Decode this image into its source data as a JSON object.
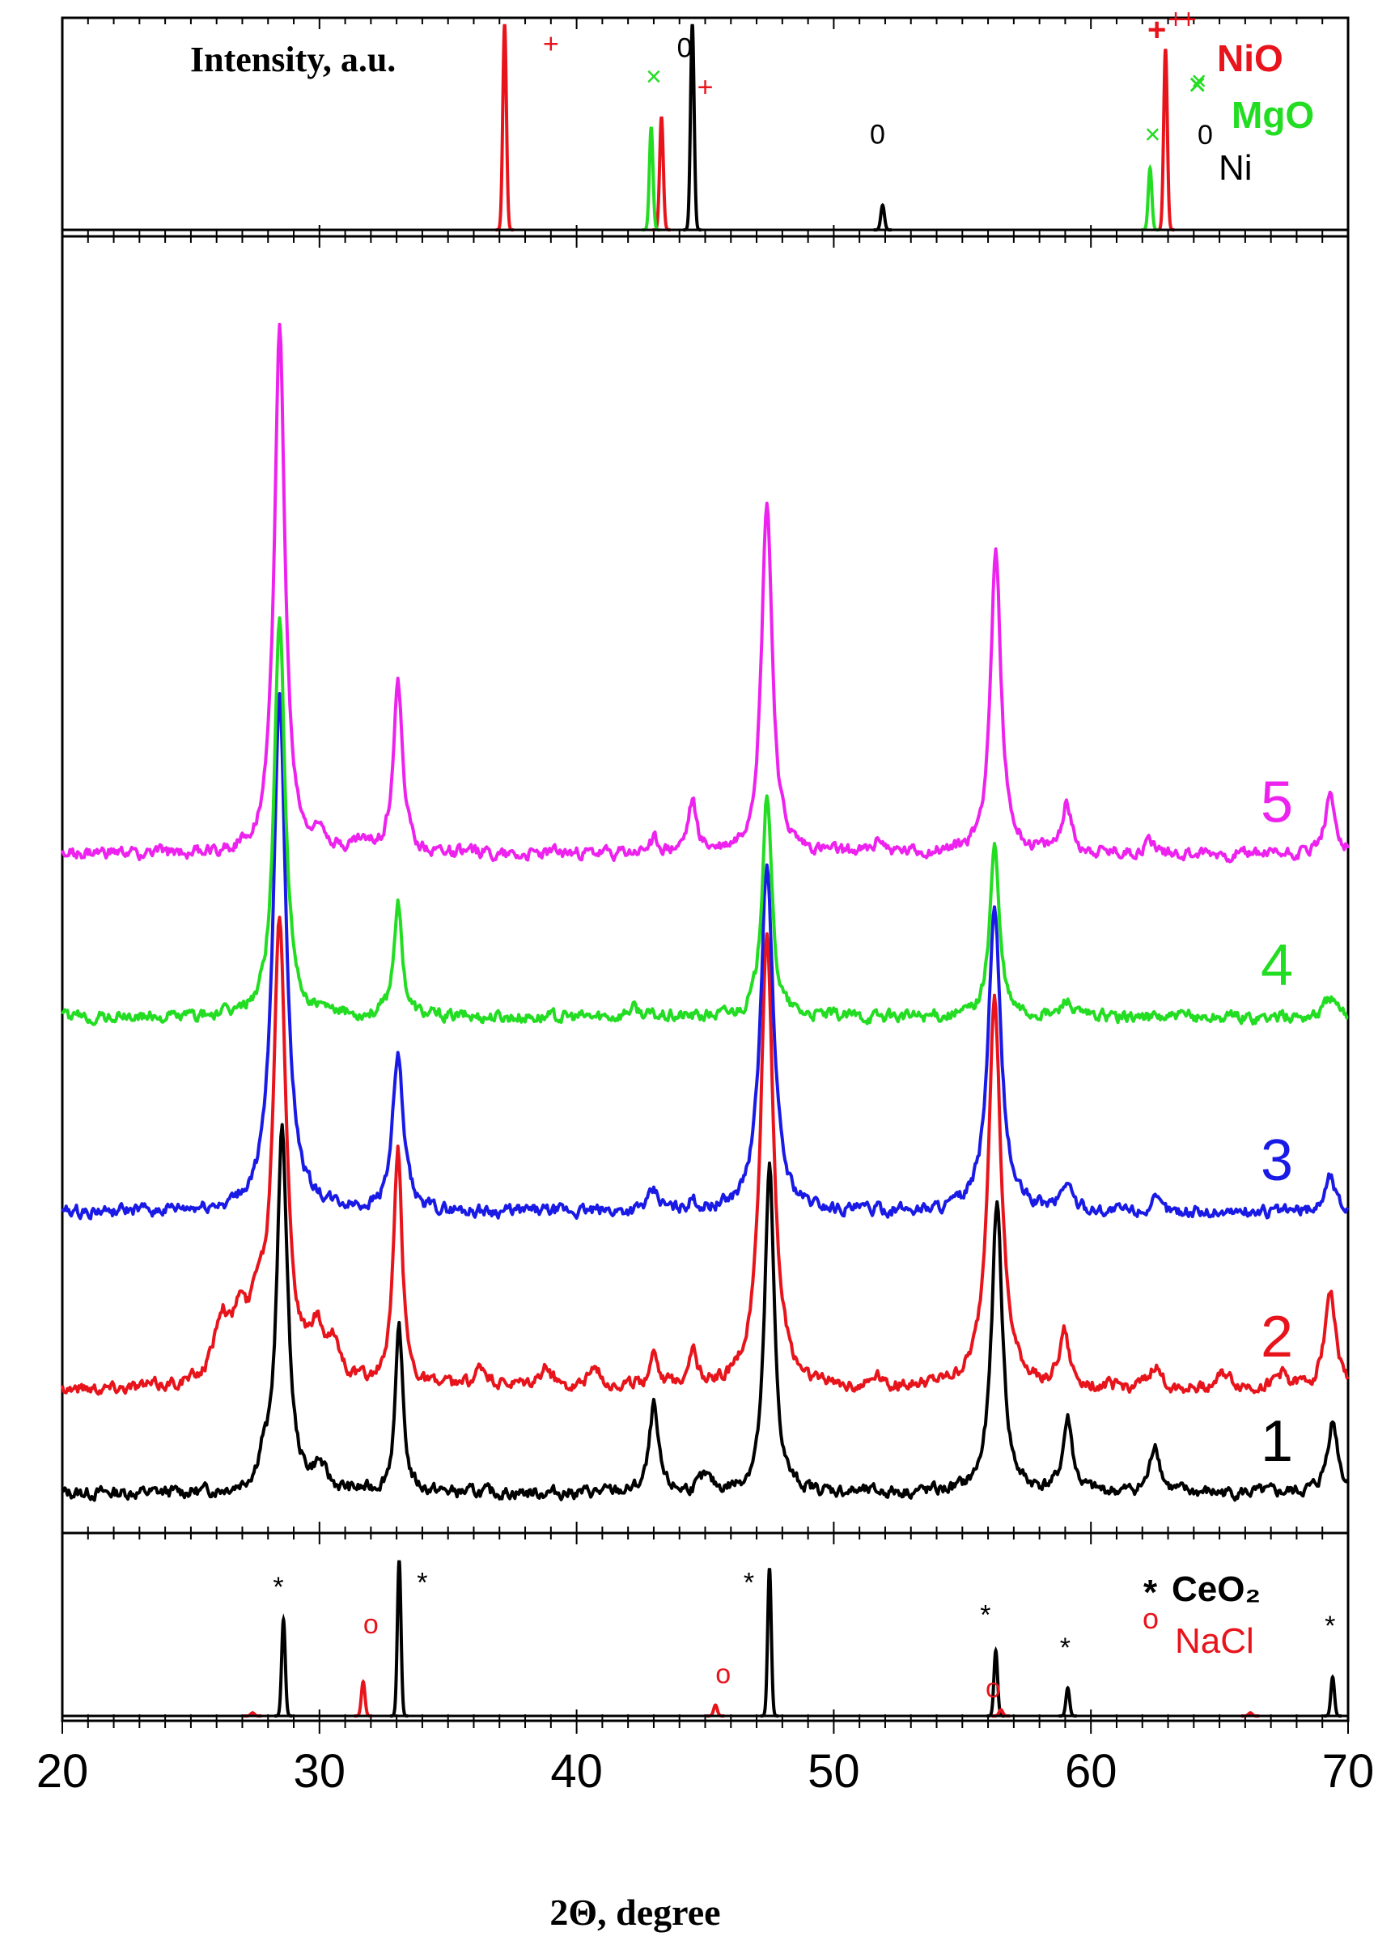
{
  "chart_data": {
    "type": "line",
    "title": "",
    "ylabel": "Intensity, a.u.",
    "xlabel": "2Θ, degree",
    "xlim": [
      20,
      70
    ],
    "x_ticks": [
      "20",
      "30",
      "40",
      "50",
      "60",
      "70"
    ],
    "grid": false,
    "legend_placement": "right",
    "colors": {
      "NiO": "#e8141c",
      "MgO": "#22dd22",
      "Ni": "#000000",
      "CeO2": "#000000",
      "NaCl": "#e8141c",
      "s1": "#000000",
      "s2": "#e8141c",
      "s3": "#1a1ae6",
      "s4": "#22dd22",
      "s5": "#ee22ee"
    },
    "reference_top": {
      "legend": [
        {
          "marker": "+",
          "label": "NiO",
          "color": "#e8141c"
        },
        {
          "marker": "×",
          "label": "MgO",
          "color": "#22dd22"
        },
        {
          "marker": "0",
          "label": "Ni",
          "color": "#000000"
        }
      ],
      "series": [
        {
          "label": "NiO",
          "color": "#e8141c",
          "marker": "+",
          "peaks": [
            {
              "x": 37.2,
              "h": 1.0
            },
            {
              "x": 43.3,
              "h": 0.55
            },
            {
              "x": 62.9,
              "h": 0.88
            }
          ],
          "markers": [
            [
              39.0,
              0.86
            ],
            [
              45.0,
              0.65
            ],
            [
              63.3,
              0.98
            ],
            [
              63.8,
              0.98
            ]
          ]
        },
        {
          "label": "MgO",
          "color": "#22dd22",
          "marker": "×",
          "peaks": [
            {
              "x": 42.9,
              "h": 0.5
            },
            {
              "x": 62.3,
              "h": 0.3
            }
          ],
          "markers": [
            [
              43.0,
              0.7
            ],
            [
              62.4,
              0.42
            ],
            [
              64.2,
              0.68
            ]
          ]
        },
        {
          "label": "Ni",
          "color": "#000000",
          "marker": "0",
          "peaks": [
            {
              "x": 44.5,
              "h": 1.0
            },
            {
              "x": 51.9,
              "h": 0.12
            }
          ],
          "markers": [
            [
              44.2,
              0.84
            ],
            [
              51.7,
              0.42
            ]
          ]
        }
      ]
    },
    "reference_bottom": {
      "legend": [
        {
          "marker": "*",
          "label": "CeO₂",
          "color": "#000000"
        },
        {
          "marker": "o",
          "label": "NaCl",
          "color": "#e8141c"
        }
      ],
      "series": [
        {
          "label": "CeO2",
          "color": "#000000",
          "marker": "*",
          "peaks": [
            {
              "x": 28.6,
              "h": 0.62
            },
            {
              "x": 33.1,
              "h": 1.0
            },
            {
              "x": 47.5,
              "h": 0.95
            },
            {
              "x": 56.3,
              "h": 0.42
            },
            {
              "x": 59.1,
              "h": 0.18
            },
            {
              "x": 69.4,
              "h": 0.25
            }
          ],
          "markers": [
            [
              28.4,
              0.77
            ],
            [
              34.0,
              0.8
            ],
            [
              46.7,
              0.8
            ],
            [
              55.9,
              0.59
            ],
            [
              59.0,
              0.38
            ],
            [
              69.3,
              0.52
            ]
          ]
        },
        {
          "label": "NaCl",
          "color": "#e8141c",
          "marker": "o",
          "peaks": [
            {
              "x": 27.4,
              "h": 0.02
            },
            {
              "x": 31.7,
              "h": 0.22
            },
            {
              "x": 45.4,
              "h": 0.07
            },
            {
              "x": 56.5,
              "h": 0.04
            },
            {
              "x": 66.2,
              "h": 0.02
            }
          ],
          "markers": [
            [
              32.0,
              0.53
            ],
            [
              45.7,
              0.21
            ],
            [
              56.2,
              0.12
            ]
          ]
        }
      ]
    },
    "patterns": [
      {
        "label": "1",
        "color": "#000000",
        "baseline": 0.0,
        "peaks": [
          [
            28.55,
            8.0,
            0.25
          ],
          [
            33.1,
            3.6,
            0.18
          ],
          [
            43.0,
            1.9,
            0.2
          ],
          [
            47.5,
            7.2,
            0.22
          ],
          [
            56.35,
            6.4,
            0.25
          ],
          [
            59.1,
            1.6,
            0.22
          ],
          [
            62.5,
            1.1,
            0.22
          ],
          [
            69.4,
            1.6,
            0.25
          ],
          [
            27.8,
            0.5,
            0.2
          ],
          [
            30.0,
            0.5,
            0.3
          ],
          [
            45.0,
            0.3,
            0.3
          ]
        ]
      },
      {
        "label": "2",
        "color": "#e8141c",
        "baseline": 2.3,
        "peaks": [
          [
            28.45,
            10.2,
            0.3
          ],
          [
            33.05,
            5.2,
            0.2
          ],
          [
            47.4,
            10.0,
            0.3
          ],
          [
            56.25,
            8.6,
            0.3
          ],
          [
            58.95,
            1.2,
            0.22
          ],
          [
            62.5,
            0.5,
            0.22
          ],
          [
            69.3,
            2.2,
            0.25
          ],
          [
            26.2,
            1.4,
            0.35
          ],
          [
            26.9,
            1.2,
            0.3
          ],
          [
            27.6,
            1.4,
            0.35
          ],
          [
            29.9,
            1.0,
            0.35
          ],
          [
            30.6,
            0.7,
            0.3
          ],
          [
            43.0,
            0.8,
            0.2
          ],
          [
            44.5,
            0.8,
            0.2
          ],
          [
            36.3,
            0.4,
            0.3
          ],
          [
            38.8,
            0.4,
            0.3
          ],
          [
            40.7,
            0.4,
            0.3
          ],
          [
            51.7,
            0.3,
            0.2
          ],
          [
            65.2,
            0.3,
            0.3
          ],
          [
            67.4,
            0.3,
            0.3
          ]
        ]
      },
      {
        "label": "3",
        "color": "#1a1ae6",
        "baseline": 6.2,
        "peaks": [
          [
            28.45,
            11.4,
            0.3
          ],
          [
            33.05,
            3.4,
            0.25
          ],
          [
            47.4,
            7.6,
            0.3
          ],
          [
            56.25,
            6.6,
            0.3
          ],
          [
            59.05,
            0.6,
            0.25
          ],
          [
            62.5,
            0.2,
            0.25
          ],
          [
            69.3,
            0.8,
            0.25
          ],
          [
            43.0,
            0.4,
            0.25
          ],
          [
            44.5,
            0.2,
            0.2
          ]
        ]
      },
      {
        "label": "4",
        "color": "#22dd22",
        "baseline": 10.5,
        "peaks": [
          [
            28.45,
            8.9,
            0.25
          ],
          [
            33.05,
            2.5,
            0.2
          ],
          [
            47.4,
            5.0,
            0.22
          ],
          [
            56.25,
            3.8,
            0.22
          ],
          [
            59.05,
            0.4,
            0.2
          ],
          [
            69.3,
            0.45,
            0.25
          ],
          [
            42.2,
            0.2,
            0.3
          ]
        ]
      },
      {
        "label": "5",
        "color": "#ee22ee",
        "baseline": 14.1,
        "peaks": [
          [
            28.45,
            11.6,
            0.25
          ],
          [
            33.05,
            3.7,
            0.22
          ],
          [
            47.4,
            7.8,
            0.25
          ],
          [
            56.3,
            6.6,
            0.25
          ],
          [
            59.05,
            1.1,
            0.22
          ],
          [
            62.3,
            0.3,
            0.22
          ],
          [
            69.3,
            1.2,
            0.25
          ],
          [
            44.5,
            1.1,
            0.2
          ],
          [
            43.0,
            0.3,
            0.2
          ],
          [
            51.8,
            0.3,
            0.2
          ],
          [
            30.1,
            0.4,
            0.3
          ],
          [
            31.6,
            0.2,
            0.3
          ]
        ]
      }
    ]
  }
}
